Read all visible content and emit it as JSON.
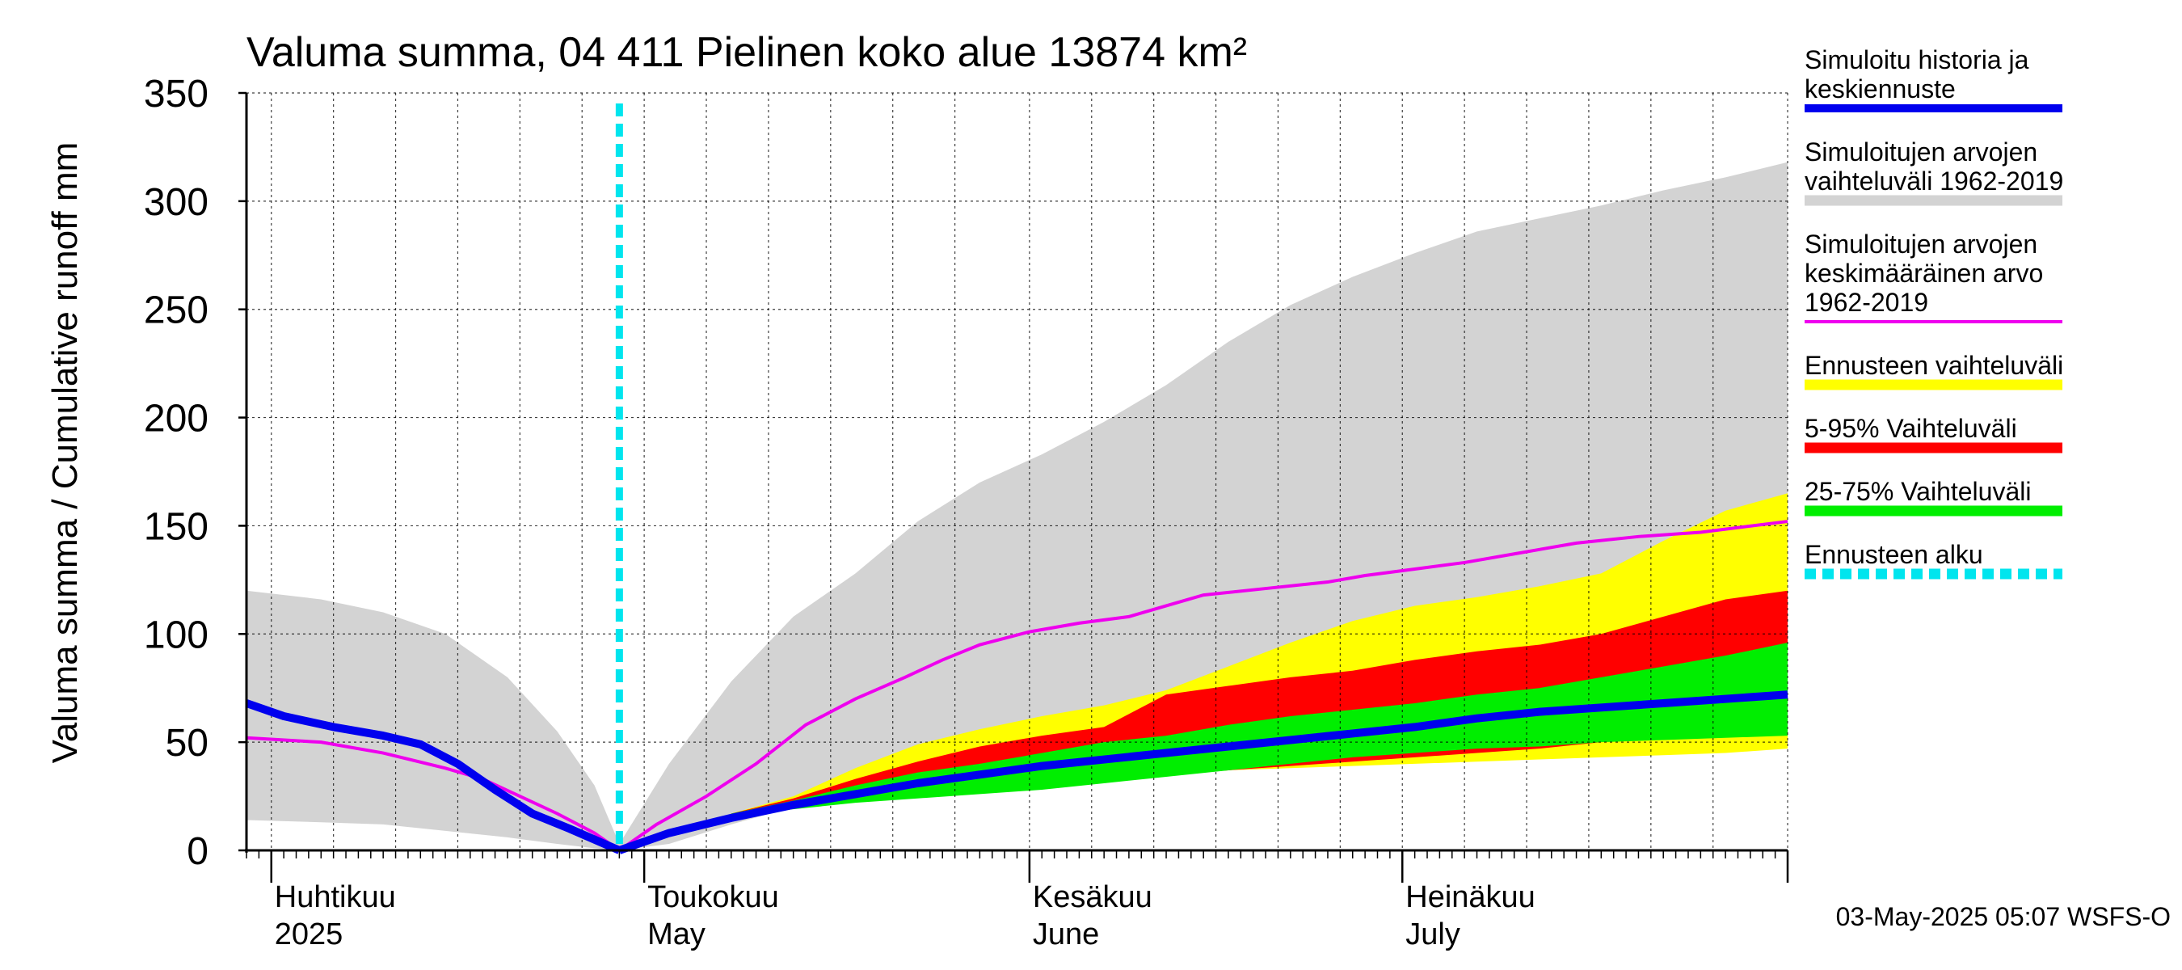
{
  "chart_data": {
    "type": "area",
    "title": "Valuma summa, 04 411 Pielinen koko alue 13874 km²",
    "ylabel": "Valuma summa / Cumulative runoff    mm",
    "xlabel": "",
    "ylim": [
      0,
      350
    ],
    "yticks": [
      0,
      50,
      100,
      150,
      200,
      250,
      300,
      350
    ],
    "xlim": [
      "2025-03-30",
      "2025-08-01"
    ],
    "grid": true,
    "legend_position": "right",
    "month_labels": [
      {
        "date": "2025-04-01",
        "fi": "Huhtikuu",
        "en": "2025"
      },
      {
        "date": "2025-05-01",
        "fi": "Toukokuu",
        "en": "May"
      },
      {
        "date": "2025-06-01",
        "fi": "Kesäkuu",
        "en": "June"
      },
      {
        "date": "2025-07-01",
        "fi": "Heinäkuu",
        "en": "July"
      }
    ],
    "forecast_start": "2025-04-29",
    "footer": "03-May-2025 05:07 WSFS-O",
    "legend": [
      {
        "key": "hist",
        "label": "Simuloitu historia ja keskiennuste",
        "lines": [
          "Simuloitu historia ja",
          "keskiennuste"
        ],
        "color": "#0000ee",
        "style": "solid"
      },
      {
        "key": "range",
        "label": "Simuloitujen arvojen vaihteluväli 1962-2019",
        "lines": [
          "Simuloitujen arvojen",
          "vaihteluväli 1962-2019"
        ],
        "color": "#d3d3d3",
        "style": "solid"
      },
      {
        "key": "mean",
        "label": "Simuloitujen arvojen keskimääräinen arvo 1962-2019",
        "lines": [
          "Simuloitujen arvojen",
          "keskimääräinen arvo",
          "   1962-2019"
        ],
        "color": "#ee00ee",
        "style": "thin"
      },
      {
        "key": "fc_range",
        "label": "Ennusteen vaihteluväli",
        "lines": [
          "Ennusteen vaihteluväli"
        ],
        "color": "#ffff00",
        "style": "solid"
      },
      {
        "key": "p5_95",
        "label": "5-95% Vaihteluväli",
        "lines": [
          "5-95% Vaihteluväli"
        ],
        "color": "#ff0000",
        "style": "solid"
      },
      {
        "key": "p25_75",
        "label": "25-75% Vaihteluväli",
        "lines": [
          "25-75% Vaihteluväli"
        ],
        "color": "#00ee00",
        "style": "solid"
      },
      {
        "key": "fc_start",
        "label": "Ennusteen alku",
        "lines": [
          "Ennusteen alku"
        ],
        "color": "#00e5ee",
        "style": "dashed"
      }
    ],
    "series": {
      "hist_range": {
        "x": [
          "2025-03-30",
          "2025-04-05",
          "2025-04-10",
          "2025-04-15",
          "2025-04-20",
          "2025-04-24",
          "2025-04-27",
          "2025-04-29",
          "2025-05-03",
          "2025-05-08",
          "2025-05-13",
          "2025-05-18",
          "2025-05-23",
          "2025-05-28",
          "2025-06-02",
          "2025-06-07",
          "2025-06-12",
          "2025-06-17",
          "2025-06-22",
          "2025-06-27",
          "2025-07-02",
          "2025-07-07",
          "2025-07-12",
          "2025-07-17",
          "2025-07-22",
          "2025-07-27",
          "2025-08-01"
        ],
        "upper": [
          120,
          116,
          110,
          100,
          80,
          55,
          30,
          3,
          40,
          78,
          108,
          128,
          152,
          170,
          183,
          198,
          215,
          235,
          252,
          265,
          276,
          286,
          292,
          298,
          305,
          311,
          318
        ],
        "lower": [
          14,
          13,
          12,
          9,
          6,
          3,
          1,
          0,
          3,
          12,
          20,
          26,
          31,
          34,
          37,
          39,
          41,
          43,
          45,
          47,
          48,
          49,
          50,
          51,
          52,
          53,
          54
        ]
      },
      "hist_mean": {
        "x": [
          "2025-03-30",
          "2025-04-05",
          "2025-04-10",
          "2025-04-15",
          "2025-04-18",
          "2025-04-21",
          "2025-04-24",
          "2025-04-27",
          "2025-04-29",
          "2025-05-02",
          "2025-05-06",
          "2025-05-10",
          "2025-05-14",
          "2025-05-18",
          "2025-05-22",
          "2025-05-25",
          "2025-05-28",
          "2025-06-01",
          "2025-06-05",
          "2025-06-09",
          "2025-06-12",
          "2025-06-15",
          "2025-06-20",
          "2025-06-25",
          "2025-06-28",
          "2025-07-02",
          "2025-07-06",
          "2025-07-10",
          "2025-07-15",
          "2025-07-20",
          "2025-07-25",
          "2025-08-01"
        ],
        "y": [
          52,
          50,
          45,
          38,
          33,
          25,
          17,
          8,
          0,
          12,
          25,
          40,
          58,
          70,
          80,
          88,
          95,
          101,
          105,
          108,
          113,
          118,
          121,
          124,
          127,
          130,
          133,
          137,
          142,
          145,
          147,
          152
        ]
      },
      "simulated_history": {
        "x": [
          "2025-03-30",
          "2025-04-02",
          "2025-04-06",
          "2025-04-10",
          "2025-04-13",
          "2025-04-16",
          "2025-04-19",
          "2025-04-22",
          "2025-04-25",
          "2025-04-27",
          "2025-04-29"
        ],
        "y": [
          68,
          62,
          57,
          53,
          49,
          40,
          28,
          17,
          10,
          5,
          0
        ]
      },
      "mean_forecast": {
        "x": [
          "2025-04-29",
          "2025-05-03",
          "2025-05-08",
          "2025-05-13",
          "2025-05-18",
          "2025-05-23",
          "2025-05-28",
          "2025-06-02",
          "2025-06-07",
          "2025-06-12",
          "2025-06-17",
          "2025-06-22",
          "2025-06-27",
          "2025-07-02",
          "2025-07-07",
          "2025-07-12",
          "2025-07-17",
          "2025-07-22",
          "2025-07-27",
          "2025-08-01"
        ],
        "y": [
          0,
          8,
          15,
          21,
          26,
          31,
          35,
          39,
          42,
          45,
          48,
          51,
          54,
          57,
          61,
          64,
          66,
          68,
          70,
          72
        ]
      },
      "fc_range": {
        "x": [
          "2025-05-08",
          "2025-05-13",
          "2025-05-18",
          "2025-05-23",
          "2025-05-28",
          "2025-06-02",
          "2025-06-07",
          "2025-06-12",
          "2025-06-17",
          "2025-06-22",
          "2025-06-27",
          "2025-07-02",
          "2025-07-07",
          "2025-07-12",
          "2025-07-17",
          "2025-07-22",
          "2025-07-27",
          "2025-08-01"
        ],
        "upper": [
          17,
          25,
          38,
          49,
          56,
          62,
          67,
          74,
          85,
          96,
          106,
          113,
          117,
          122,
          128,
          143,
          157,
          165
        ],
        "lower": [
          16,
          21,
          26,
          29,
          31,
          33,
          35,
          36,
          37,
          38,
          39,
          40,
          41,
          42,
          43,
          44,
          45,
          47
        ]
      },
      "p5_95": {
        "x": [
          "2025-05-08",
          "2025-05-13",
          "2025-05-18",
          "2025-05-23",
          "2025-05-28",
          "2025-06-02",
          "2025-06-07",
          "2025-06-12",
          "2025-06-17",
          "2025-06-22",
          "2025-06-27",
          "2025-07-02",
          "2025-07-07",
          "2025-07-12",
          "2025-07-17",
          "2025-07-22",
          "2025-07-27",
          "2025-08-01"
        ],
        "upper": [
          17,
          24,
          33,
          41,
          48,
          53,
          57,
          72,
          76,
          80,
          83,
          88,
          92,
          95,
          100,
          108,
          116,
          120
        ],
        "lower": [
          16,
          20,
          23,
          27,
          30,
          32,
          34,
          35,
          37,
          39,
          41,
          43,
          45,
          47,
          50,
          52,
          55,
          58
        ]
      },
      "p25_75": {
        "x": [
          "2025-05-08",
          "2025-05-13",
          "2025-05-18",
          "2025-05-23",
          "2025-05-28",
          "2025-06-02",
          "2025-06-07",
          "2025-06-12",
          "2025-06-17",
          "2025-06-22",
          "2025-06-27",
          "2025-07-02",
          "2025-07-07",
          "2025-07-12",
          "2025-07-17",
          "2025-07-22",
          "2025-07-27",
          "2025-08-01"
        ],
        "upper": [
          17,
          23,
          30,
          36,
          40,
          45,
          50,
          53,
          58,
          62,
          65,
          68,
          72,
          75,
          80,
          85,
          90,
          96
        ],
        "lower": [
          16,
          19,
          22,
          24,
          26,
          28,
          31,
          34,
          37,
          40,
          43,
          45,
          47,
          48,
          50,
          51,
          52,
          53
        ]
      }
    }
  }
}
